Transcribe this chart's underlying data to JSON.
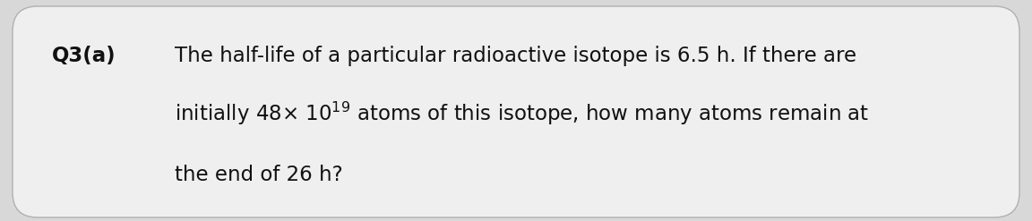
{
  "background_color": "#d8d8d8",
  "box_facecolor": "#efefef",
  "box_edgecolor": "#b0b0b0",
  "label": "Q3(a)",
  "line1": "The half-life of a particular radioactive isotope is 6.5 h. If there are",
  "line2_before_sup": "initially 48× 10",
  "line2_sup": "19",
  "line2_after_sup": " atoms of this isotope, how many atoms remain at",
  "line3": "the end of 26 h?",
  "font_size": 16.5,
  "label_font_size": 16.5,
  "sup_font_size": 11.0,
  "text_color": "#111111",
  "label_font_weight": "bold"
}
